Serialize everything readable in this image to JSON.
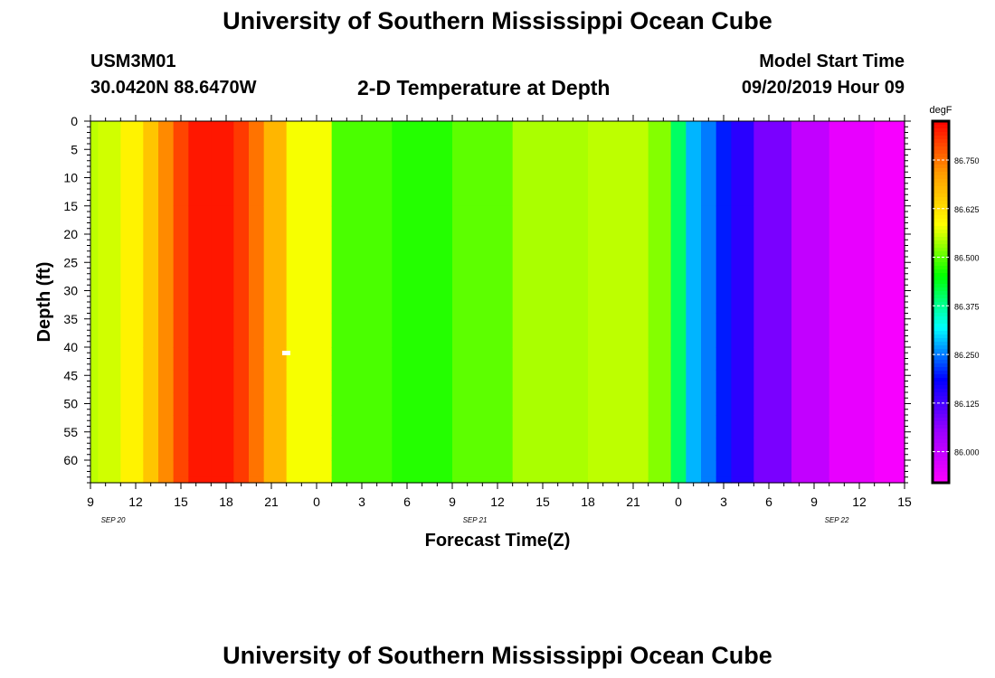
{
  "header": {
    "title": "University of Southern Mississippi Ocean Cube",
    "station": "USM3M01",
    "location": "30.0420N 88.6470W",
    "plot_title": "2-D Temperature at Depth",
    "start_label": "Model Start Time",
    "start_time": "09/20/2019 Hour 09"
  },
  "footer": {
    "title": "University of Southern Mississippi Ocean Cube"
  },
  "chart_data": {
    "type": "heatmap",
    "title": "2-D Temperature at Depth",
    "xlabel": "Forecast Time(Z)",
    "ylabel": "Depth (ft)",
    "x_unit": "forecast hour from 09/20/2019 09Z",
    "x_range": [
      0,
      54
    ],
    "x_ticks": [
      "9",
      "12",
      "15",
      "18",
      "21",
      "0",
      "3",
      "6",
      "9",
      "12",
      "15",
      "18",
      "21",
      "0",
      "3",
      "6",
      "9",
      "12",
      "15"
    ],
    "date_labels": [
      "SEP 20",
      "SEP 21",
      "SEP 22"
    ],
    "y_range": [
      0,
      64
    ],
    "y_ticks": [
      "0",
      "5",
      "10",
      "15",
      "20",
      "25",
      "30",
      "35",
      "40",
      "45",
      "50",
      "55",
      "60"
    ],
    "colorbar": {
      "unit": "degF",
      "range": [
        85.92,
        86.85
      ],
      "ticks": [
        "86.750",
        "86.625",
        "86.500",
        "86.375",
        "86.250",
        "86.125",
        "86.000"
      ],
      "colors": [
        "#ff00ff",
        "#9900ff",
        "#0000ff",
        "#00ffff",
        "#00ff00",
        "#ffff00",
        "#ff9900",
        "#ff0000"
      ]
    },
    "grid": false,
    "depths": [
      0,
      30,
      38,
      42,
      46,
      50,
      54,
      58,
      62,
      64
    ],
    "times": [
      0,
      1,
      3,
      4,
      5,
      6,
      7,
      9,
      10,
      11,
      12,
      14,
      18,
      22,
      26,
      30,
      36,
      38,
      39,
      40,
      41,
      42,
      43,
      45,
      48,
      50,
      54
    ],
    "temperature_degF": [
      [
        86.55,
        86.55,
        86.55,
        86.55,
        86.55,
        86.55,
        86.55,
        86.55,
        86.55,
        86.55
      ],
      [
        86.56,
        86.56,
        86.56,
        86.56,
        86.56,
        86.56,
        86.56,
        86.56,
        86.56,
        86.56
      ],
      [
        86.6,
        86.6,
        86.6,
        86.6,
        86.6,
        86.6,
        86.6,
        86.6,
        86.6,
        86.6
      ],
      [
        86.66,
        86.66,
        86.66,
        86.66,
        86.66,
        86.66,
        86.66,
        86.66,
        86.66,
        86.66
      ],
      [
        86.73,
        86.73,
        86.73,
        86.73,
        86.73,
        86.73,
        86.73,
        86.73,
        86.73,
        86.73
      ],
      [
        86.79,
        86.79,
        86.79,
        86.79,
        86.79,
        86.79,
        86.79,
        86.79,
        86.79,
        86.79
      ],
      [
        86.83,
        86.83,
        86.83,
        86.83,
        86.83,
        86.83,
        86.83,
        86.83,
        86.83,
        86.83
      ],
      [
        86.83,
        86.83,
        86.83,
        86.83,
        86.83,
        86.83,
        86.83,
        86.83,
        86.83,
        86.83
      ],
      [
        86.8,
        86.8,
        86.8,
        86.8,
        86.8,
        86.8,
        86.8,
        86.8,
        86.8,
        86.8
      ],
      [
        86.75,
        86.75,
        86.75,
        86.75,
        86.75,
        86.75,
        86.75,
        86.75,
        86.75,
        86.75
      ],
      [
        86.68,
        86.68,
        86.68,
        86.68,
        86.68,
        86.68,
        86.68,
        86.68,
        86.68,
        86.68
      ],
      [
        86.58,
        86.58,
        86.58,
        86.58,
        86.58,
        86.58,
        86.58,
        86.58,
        86.58,
        86.58
      ],
      [
        86.49,
        86.49,
        86.49,
        86.49,
        86.49,
        86.49,
        86.49,
        86.49,
        86.49,
        86.49
      ],
      [
        86.47,
        86.47,
        86.47,
        86.47,
        86.47,
        86.47,
        86.47,
        86.47,
        86.47,
        86.47
      ],
      [
        86.5,
        86.5,
        86.5,
        86.5,
        86.5,
        86.5,
        86.5,
        86.5,
        86.5,
        86.5
      ],
      [
        86.54,
        86.54,
        86.54,
        86.54,
        86.54,
        86.54,
        86.54,
        86.54,
        86.54,
        86.54
      ],
      [
        86.55,
        86.55,
        86.55,
        86.55,
        86.55,
        86.55,
        86.55,
        86.55,
        86.55,
        86.55
      ],
      [
        86.52,
        86.52,
        86.52,
        86.52,
        86.52,
        86.52,
        86.52,
        86.52,
        86.52,
        86.52
      ],
      [
        86.4,
        86.4,
        86.4,
        86.4,
        86.4,
        86.4,
        86.4,
        86.4,
        86.4,
        86.4
      ],
      [
        86.28,
        86.28,
        86.28,
        86.28,
        86.28,
        86.28,
        86.28,
        86.28,
        86.28,
        86.28
      ],
      [
        86.25,
        86.25,
        86.25,
        86.25,
        86.25,
        86.25,
        86.25,
        86.25,
        86.25,
        86.25
      ],
      [
        86.2,
        86.2,
        86.2,
        86.2,
        86.2,
        86.2,
        86.2,
        86.2,
        86.2,
        86.2
      ],
      [
        86.15,
        86.15,
        86.15,
        86.15,
        86.15,
        86.15,
        86.15,
        86.15,
        86.15,
        86.15
      ],
      [
        86.08,
        86.08,
        86.08,
        86.08,
        86.08,
        86.08,
        86.08,
        86.08,
        86.08,
        86.08
      ],
      [
        86.0,
        86.0,
        86.0,
        86.0,
        86.0,
        86.0,
        86.0,
        86.0,
        86.0,
        86.0
      ],
      [
        85.95,
        85.95,
        85.95,
        85.95,
        85.95,
        85.95,
        85.95,
        85.95,
        85.95,
        85.95
      ],
      [
        85.93,
        85.93,
        85.93,
        85.93,
        85.93,
        85.93,
        85.93,
        85.93,
        85.93,
        85.93
      ]
    ]
  }
}
